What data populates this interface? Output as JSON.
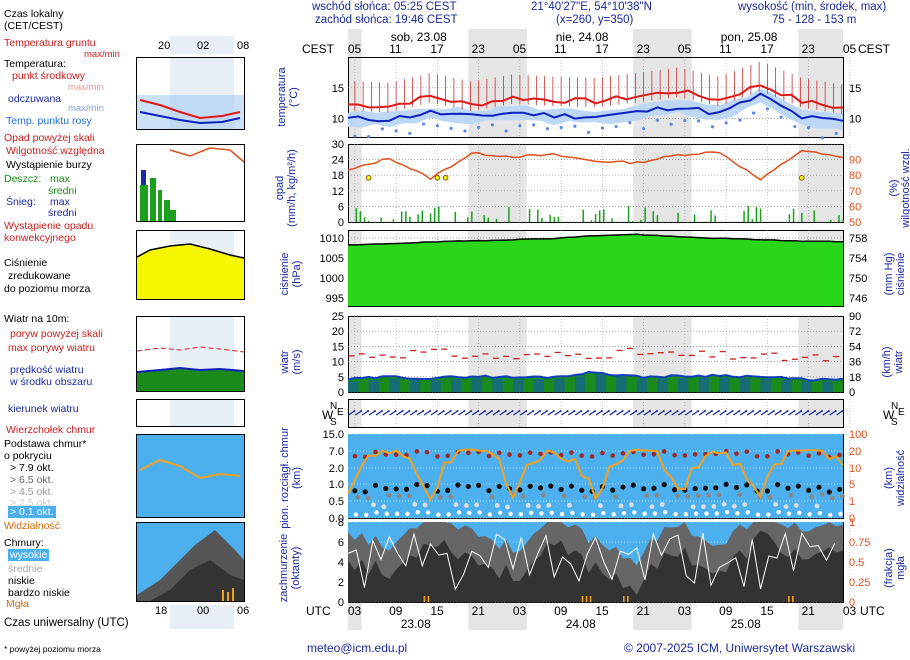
{
  "header": {
    "sunrise": "wschód słońca: 05:25 CEST",
    "sunset": "zachód słońca: 19:46 CEST",
    "coords": "21°40'27\"E, 54°10'38\"N",
    "grid": "(x=260,  y=350)",
    "altitude_label": "wysokość (min, środek, max)",
    "altitude_values": "75 - 128 - 153 m"
  },
  "timeaxis": {
    "tz_local": "CEST",
    "tz_utc": "UTC",
    "days": [
      "sob, 23.08",
      "nie, 24.08",
      "pon, 25.08"
    ],
    "hours_local": [
      "05",
      "11",
      "17",
      "23",
      "05",
      "11",
      "17",
      "23",
      "05",
      "11",
      "17",
      "23",
      "05"
    ],
    "hours_utc": [
      "03",
      "09",
      "15",
      "21",
      "03",
      "09",
      "15",
      "21",
      "03",
      "09",
      "15",
      "21",
      "03"
    ],
    "dates_utc": [
      "23.08",
      "24.08",
      "25.08"
    ],
    "legend_local_ticks": [
      "20",
      "02",
      "08"
    ],
    "legend_utc_ticks": [
      "18",
      "00",
      "06"
    ]
  },
  "legend": {
    "local_time": "Czas lokalny",
    "local_time_sub": "(CET/CEST)",
    "soil_temp": "Temperatura gruntu",
    "soil_temp_sub": "max/min",
    "temperature": "Temperatura:",
    "mid_point": "punkt środkowy",
    "max_min_1": "max/min",
    "felt": "odczuwana",
    "max_min_2": "max/min",
    "dew": "Temp. punktu rosy",
    "precip_over": "Opad powyżej skali",
    "humidity": "Wilgotność względna",
    "storm": "Wystąpienie burzy",
    "rain": "Deszcz:",
    "rain_max": "max",
    "rain_mid": "średni",
    "snow": "Śnieg:",
    "snow_max": "max",
    "snow_mid": "średni",
    "conv": "Wystąpienie opadu",
    "conv2": "konwekcyjnego",
    "pressure_1": "Ciśnienie",
    "pressure_2": "zredukowane",
    "pressure_3": "do poziomu morza",
    "wind_title": "Wiatr na 10m:",
    "gust_over": "poryw powyżej skali",
    "gust_max": "max porywy wiatru",
    "wind_mean_1": "prędkość wiatru",
    "wind_mean_2": "w środku obszaru",
    "wind_dir": "kierunek wiatru",
    "cloud_top": "Wierzchołek chmur",
    "cloud_base_1": "Podstawa chmur*",
    "cloud_base_2": "o pokryciu",
    "okt79": "> 7.9 okt.",
    "okt65": "> 6.5 okt.",
    "okt45": "> 4.5 okt.",
    "okt25": "> 2.5 okt.",
    "okt01": "> 0.1 okt.",
    "visibility": "Widzialność",
    "clouds": "Chmury:",
    "high": "wysokie",
    "middle": "średnie",
    "low": "niskie",
    "very_low": "bardzo niskie",
    "fog": "Mgła",
    "utc_time": "Czas uniwersalny (UTC)",
    "footnote": "* powyżej poziomu morza"
  },
  "panels": {
    "temperature": {
      "label": "temperatura",
      "unit": "(°C)"
    },
    "precip": {
      "label": "opad",
      "unit": "(mm/h, kg/m²/h)",
      "label_r": "wilgotność wzgl.",
      "unit_r": "(%)"
    },
    "pressure": {
      "label": "ciśnienie",
      "unit": "(hPa)",
      "label_r": "ciśnienie",
      "unit_r": "(mm Hg)"
    },
    "wind": {
      "label": "wiatr",
      "unit": "(m/s)",
      "label_r": "wiatr",
      "unit_r": "(km/h)"
    },
    "cloudbase": {
      "label": "pion. rozciągł. chmur",
      "unit": "(km)",
      "label_r": "widzialność",
      "unit_r": "(km)"
    },
    "clouds": {
      "label": "zachmurzenie",
      "unit": "(oktanty)",
      "label_r": "mgła",
      "unit_r": "(frakcja)"
    }
  },
  "footer": {
    "email": "meteo@icm.edu.pl",
    "copyright": "© 2007-2025 ICM, Uniwersytet Warszawski"
  },
  "colors": {
    "night": "#e5e5e5",
    "temp_red": "#e01818",
    "temp_blue": "#1020c0",
    "dew_blue": "#5a8ae6",
    "humidity": "#e0501c",
    "rain": "#1aa01a",
    "pressure_fill": "#2ad61a",
    "gust": "#cc1e1e",
    "wind_blue": "#1040c0",
    "visibility": "#f0a020"
  },
  "chart_data": [
    {
      "type": "line",
      "title": "temperatura",
      "ylabel": "(°C)",
      "ylim": [
        7,
        20
      ],
      "yticks": [
        10,
        15
      ],
      "x_hours": [
        0,
        6,
        12,
        18,
        24,
        30,
        36,
        42,
        48,
        54,
        60,
        66,
        72
      ],
      "series": [
        {
          "name": "punkt środkowy",
          "values": [
            12.3,
            12.0,
            13.6,
            12.2,
            13.4,
            13.0,
            12.8,
            13.6,
            14.5,
            13.0,
            15.5,
            12.8,
            11.7
          ]
        },
        {
          "name": "odczuwana",
          "values": [
            10.0,
            9.9,
            11.0,
            10.3,
            11.0,
            10.5,
            10.3,
            11.0,
            12.0,
            10.8,
            13.8,
            10.2,
            9.5
          ]
        }
      ]
    },
    {
      "type": "line",
      "title": "opad / wilgotność wzgl.",
      "ylim": [
        0,
        30
      ],
      "yticks": [
        0,
        6,
        12,
        18,
        24,
        30
      ],
      "ylim_right": [
        50,
        100
      ],
      "yticks_right": [
        50,
        60,
        70,
        80,
        90
      ],
      "series": [
        {
          "name": "wilgotność",
          "values": [
            83,
            91,
            78,
            94,
            92,
            93,
            89,
            88,
            93,
            95,
            77,
            96,
            91
          ]
        }
      ]
    },
    {
      "type": "area",
      "title": "ciśnienie",
      "ylim": [
        993,
        1012
      ],
      "yticks": [
        995,
        1000,
        1005,
        1010
      ],
      "yticks_right": [
        746,
        750,
        754,
        758
      ],
      "series": [
        {
          "name": "ciśnienie",
          "values": [
            1008.2,
            1008.6,
            1009.0,
            1009.3,
            1009.6,
            1009.9,
            1010.6,
            1010.9,
            1010.3,
            1009.9,
            1009.6,
            1009.2,
            1009.1
          ]
        }
      ]
    },
    {
      "type": "line",
      "title": "wiatr",
      "ylim": [
        0,
        25
      ],
      "yticks": [
        0,
        5,
        10,
        15,
        20,
        25
      ],
      "yticks_right": [
        0,
        18,
        36,
        54,
        72,
        90
      ],
      "series": [
        {
          "name": "max porywy wiatru",
          "values": [
            12,
            12.5,
            13,
            12,
            11.5,
            12,
            12.5,
            13,
            12,
            12,
            11.5,
            11,
            11
          ]
        },
        {
          "name": "prędkość wiatru",
          "values": [
            4.2,
            5.0,
            4.5,
            5.2,
            4.8,
            5.0,
            6.5,
            5.0,
            5.2,
            5.5,
            5.0,
            4.2,
            4.0
          ]
        }
      ]
    },
    {
      "type": "line",
      "title": "pion. rozciągł. chmur / widzialność",
      "yticks": [
        0,
        0.5,
        1.0,
        2.0,
        7.0,
        15.0
      ],
      "yticks_right": [
        0,
        1,
        5,
        10,
        20,
        100
      ],
      "series": [
        {
          "name": "Widzialność",
          "values": [
            1.5,
            12,
            1.3,
            15,
            2,
            12,
            1.2,
            14,
            2,
            10,
            1.5,
            12,
            8
          ]
        }
      ]
    },
    {
      "type": "area",
      "title": "zachmurzenie / mgła",
      "yticks": [
        0,
        2,
        4,
        6,
        8
      ],
      "yticks_right": [
        0,
        0.25,
        0.5,
        0.75,
        1
      ],
      "series": [
        {
          "name": "niskie",
          "values": [
            5,
            3,
            7,
            5,
            3,
            6,
            4,
            2,
            6,
            3,
            7,
            5,
            5
          ]
        }
      ]
    }
  ]
}
